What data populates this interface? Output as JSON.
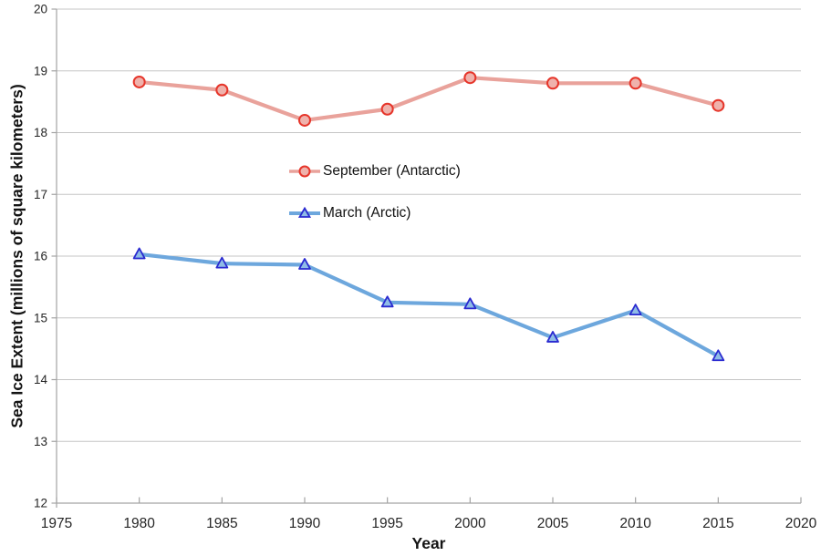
{
  "chart_data": {
    "type": "line",
    "x": [
      1980,
      1985,
      1990,
      1995,
      2000,
      2005,
      2010,
      2015
    ],
    "series": [
      {
        "name": "September (Antarctic)",
        "marker": "circle",
        "line_color": "#e9a29b",
        "marker_stroke": "#e6352a",
        "marker_fill": "#efb2ac",
        "values": [
          18.82,
          18.69,
          18.2,
          18.38,
          18.89,
          18.8,
          18.8,
          18.44
        ]
      },
      {
        "name": "March (Arctic)",
        "marker": "triangle",
        "line_color": "#6da7dd",
        "marker_stroke": "#2a2ad0",
        "marker_fill": "#8fbce6",
        "values": [
          16.03,
          15.88,
          15.86,
          15.25,
          15.22,
          14.68,
          15.12,
          14.38
        ]
      }
    ],
    "xlabel": "Year",
    "ylabel": "Sea Ice Extent (millions of square kilometers)",
    "xlim": [
      1975,
      2020
    ],
    "ylim": [
      12,
      20
    ],
    "xticks": [
      1975,
      1980,
      1985,
      1990,
      1995,
      2000,
      2005,
      2010,
      2015,
      2020
    ],
    "yticks": [
      12,
      13,
      14,
      15,
      16,
      17,
      18,
      19,
      20
    ],
    "grid": "horizontal",
    "legend_position": "inside-center",
    "colors": {
      "gridline": "#c6c6c6",
      "axis": "#a3a3a3",
      "tick_text": "#262626"
    }
  }
}
